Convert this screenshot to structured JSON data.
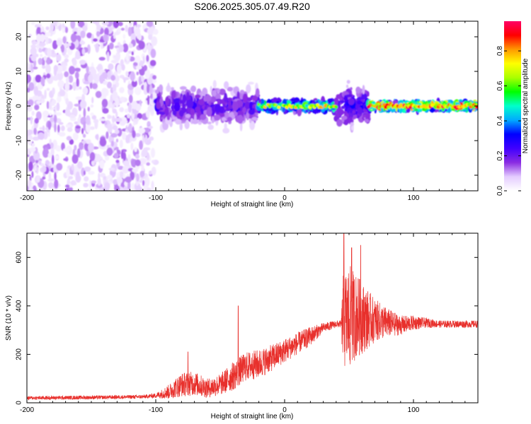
{
  "title": "S206.2025.305.07.49.R20",
  "chart_data": [
    {
      "type": "heatmap",
      "xlabel": "Height of straight line (km)",
      "ylabel": "Frequency (Hz)",
      "xlim": [
        -200,
        150
      ],
      "ylim": [
        -24.5,
        24.5
      ],
      "xticks": [
        -200,
        -100,
        0,
        100
      ],
      "yticks": [
        -20,
        -10,
        0,
        10,
        20
      ],
      "colorbar": {
        "label": "Normalized spectral amplitude",
        "range": [
          0,
          0.97
        ],
        "ticks": [
          0.0,
          0.2,
          0.4,
          0.6,
          0.8
        ],
        "colormap": [
          "#ffffff",
          "#e4ccff",
          "#8a2be2",
          "#4000ff",
          "#0000ff",
          "#00aaff",
          "#00ffcc",
          "#00ff00",
          "#aaff00",
          "#ffff00",
          "#ff9900",
          "#ff0000",
          "#ff0066"
        ]
      },
      "regions": [
        {
          "x_from": -200,
          "x_to": -100,
          "description_level": 0.12,
          "f_spread": 24
        },
        {
          "x_from": -100,
          "x_to": -20,
          "description_level": 0.25,
          "f_spread": 6
        },
        {
          "x_from": -20,
          "x_to": 40,
          "description_level": 0.6,
          "f_spread": 1.5
        },
        {
          "x_from": 40,
          "x_to": 65,
          "description_level": 0.3,
          "f_spread": 6
        },
        {
          "x_from": 65,
          "x_to": 150,
          "description_level": 0.85,
          "f_spread": 1
        }
      ]
    },
    {
      "type": "line",
      "xlabel": "Height of straight line (km)",
      "ylabel": "SNR (10 * v/v)",
      "xlim": [
        -200,
        150
      ],
      "ylim": [
        0,
        700
      ],
      "xticks": [
        -200,
        -100,
        0,
        100
      ],
      "yticks": [
        0,
        200,
        400,
        600
      ],
      "series": [
        {
          "name": "SNR",
          "color": "#e8302c",
          "x": [
            -200,
            -150,
            -110,
            -100,
            -90,
            -80,
            -70,
            -60,
            -50,
            -40,
            -30,
            -20,
            -10,
            0,
            10,
            20,
            30,
            40,
            44,
            45,
            50,
            55,
            60,
            70,
            80,
            90,
            100,
            110,
            120,
            130,
            140,
            150
          ],
          "y": [
            20,
            22,
            25,
            30,
            45,
            75,
            80,
            60,
            75,
            110,
            150,
            160,
            185,
            215,
            245,
            275,
            310,
            325,
            325,
            330,
            350,
            360,
            350,
            340,
            330,
            320,
            330,
            330,
            325,
            325,
            325,
            325
          ],
          "noise": [
            8,
            8,
            8,
            10,
            30,
            50,
            50,
            40,
            45,
            60,
            60,
            60,
            55,
            50,
            45,
            40,
            20,
            15,
            15,
            200,
            220,
            180,
            150,
            90,
            60,
            40,
            30,
            20,
            15,
            15,
            15,
            15
          ]
        }
      ],
      "spikes": [
        [
          -36,
          400
        ],
        [
          -75,
          210
        ],
        [
          46,
          700
        ],
        [
          59,
          650
        ],
        [
          52,
          640
        ]
      ]
    }
  ]
}
